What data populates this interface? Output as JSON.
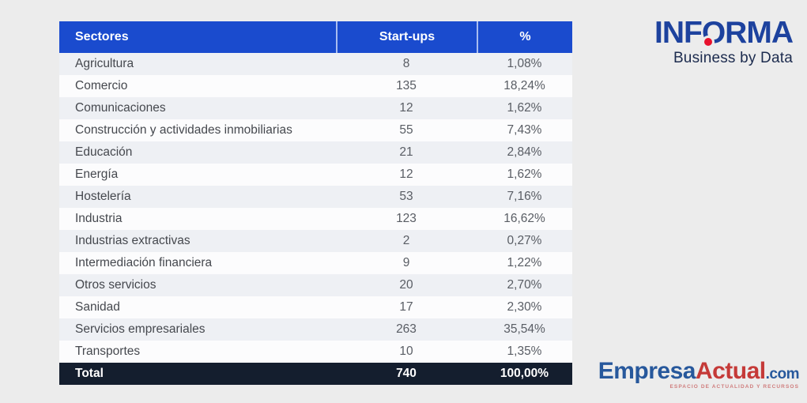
{
  "chart_data": {
    "type": "table",
    "title": "",
    "columns": [
      "Sectores",
      "Start-ups",
      "%"
    ],
    "rows": [
      [
        "Agricultura",
        "8",
        "1,08%"
      ],
      [
        "Comercio",
        "135",
        "18,24%"
      ],
      [
        "Comunicaciones",
        "12",
        "1,62%"
      ],
      [
        "Construcción y actividades inmobiliarias",
        "55",
        "7,43%"
      ],
      [
        "Educación",
        "21",
        "2,84%"
      ],
      [
        "Energía",
        "12",
        "1,62%"
      ],
      [
        "Hostelería",
        "53",
        "7,16%"
      ],
      [
        "Industria",
        "123",
        "16,62%"
      ],
      [
        "Industrias extractivas",
        "2",
        "0,27%"
      ],
      [
        "Intermediación financiera",
        "9",
        "1,22%"
      ],
      [
        "Otros servicios",
        "20",
        "2,70%"
      ],
      [
        "Sanidad",
        "17",
        "2,30%"
      ],
      [
        "Servicios empresariales",
        "263",
        "35,54%"
      ],
      [
        "Transportes",
        "10",
        "1,35%"
      ]
    ],
    "total_row": [
      "Total",
      "740",
      "100,00%"
    ]
  },
  "logos": {
    "informa": {
      "part1": "INF",
      "o": "O",
      "part2": "RMA",
      "tagline": "Business by Data"
    },
    "empresa_actual": {
      "part1": "Empresa",
      "part2": "Actual",
      "suffix": ".com",
      "tagline": "ESPACIO DE ACTUALIDAD Y RECURSOS"
    }
  },
  "colors": {
    "page_background": "#ececec",
    "header_background": "#1a4bce",
    "header_text": "#ffffff",
    "row_odd": "#eef0f4",
    "row_even": "#fcfcfd",
    "total_background": "#141e2e",
    "informa_blue": "#1d429e",
    "informa_dot_red": "#e8112d",
    "empresa_blue": "#27589c",
    "empresa_red": "#c53a38"
  }
}
